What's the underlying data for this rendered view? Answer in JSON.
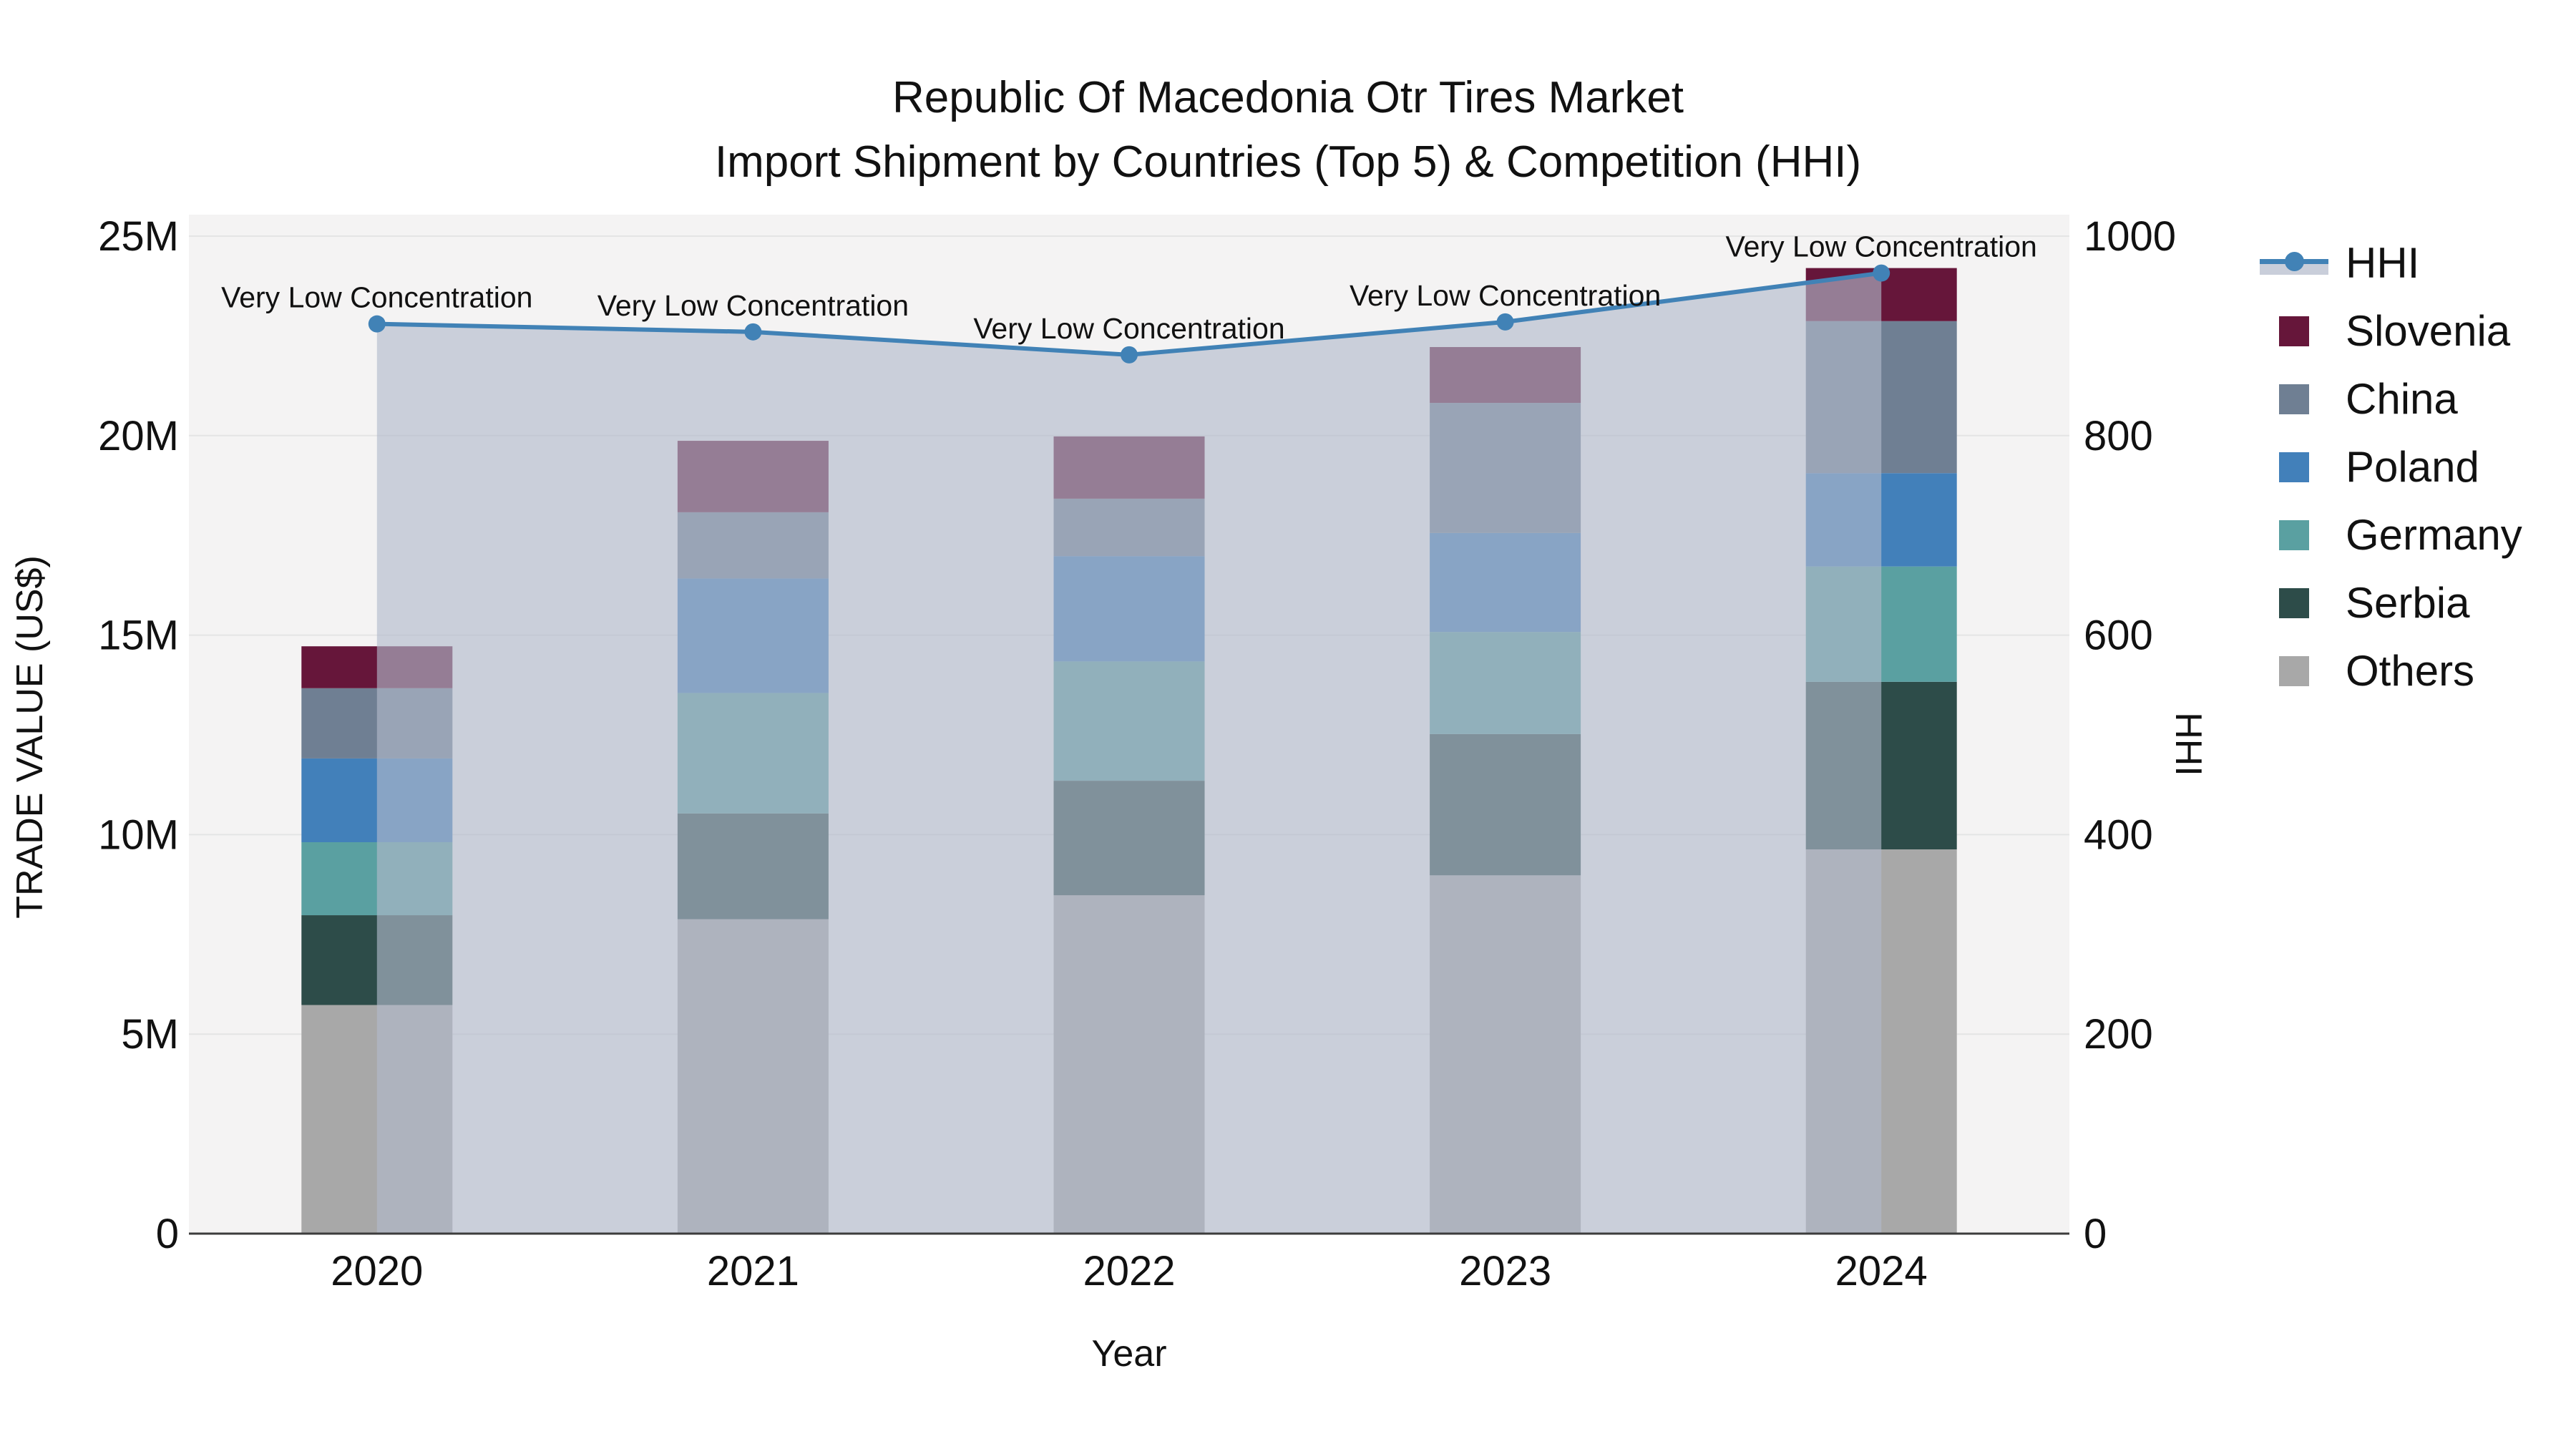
{
  "title": {
    "line1": "Republic Of Macedonia Otr Tires Market",
    "line2": "Import Shipment by Countries (Top 5) & Competition (HHI)"
  },
  "chart_data": {
    "type": "combo-stacked-bar-line",
    "categories": [
      "2020",
      "2021",
      "2022",
      "2023",
      "2024"
    ],
    "bar_unit": "M US$",
    "bar_series": [
      {
        "name": "Others",
        "color": "#A8A8A8",
        "values": [
          5.73,
          7.88,
          8.48,
          8.98,
          9.63
        ]
      },
      {
        "name": "Serbia",
        "color": "#2D4C49",
        "values": [
          2.25,
          2.65,
          2.87,
          3.54,
          4.2
        ]
      },
      {
        "name": "Germany",
        "color": "#5AA0A1",
        "values": [
          1.83,
          3.02,
          2.99,
          2.56,
          2.89
        ]
      },
      {
        "name": "Poland",
        "color": "#4280BA",
        "values": [
          2.1,
          2.87,
          2.64,
          2.48,
          2.34
        ]
      },
      {
        "name": "China",
        "color": "#6F7F93",
        "values": [
          1.76,
          1.66,
          1.44,
          3.26,
          3.81
        ]
      },
      {
        "name": "Slovenia",
        "color": "#66163A",
        "values": [
          1.05,
          1.79,
          1.56,
          1.4,
          1.33
        ]
      }
    ],
    "bar_totals": [
      14.72,
      19.87,
      19.98,
      22.22,
      24.2
    ],
    "line_series": {
      "name": "HHI",
      "color": "#4182B6",
      "area_fill": "rgba(177,185,203,0.63)",
      "values": [
        912,
        904,
        881,
        914,
        963
      ]
    },
    "annotation_text": "Very Low Concentration",
    "left_axis": {
      "title": "TRADE VALUE (US$)",
      "ticks": [
        "0",
        "5M",
        "10M",
        "15M",
        "20M",
        "25M"
      ],
      "max_value_m": 25
    },
    "right_axis": {
      "title": "HHI",
      "ticks": [
        "0",
        "200",
        "400",
        "600",
        "800",
        "1000"
      ],
      "max_value": 1000
    },
    "x_axis": {
      "title": "Year"
    },
    "legend_order": [
      "HHI",
      "Slovenia",
      "China",
      "Poland",
      "Germany",
      "Serbia",
      "Others"
    ],
    "grid": "horizontal-on",
    "legend_position": "right",
    "plot_bg_color": "#F4F3F3",
    "grid_color": "#E4E4E4",
    "axis_line_color": "#3C3C3C",
    "text_color": "#111111"
  }
}
